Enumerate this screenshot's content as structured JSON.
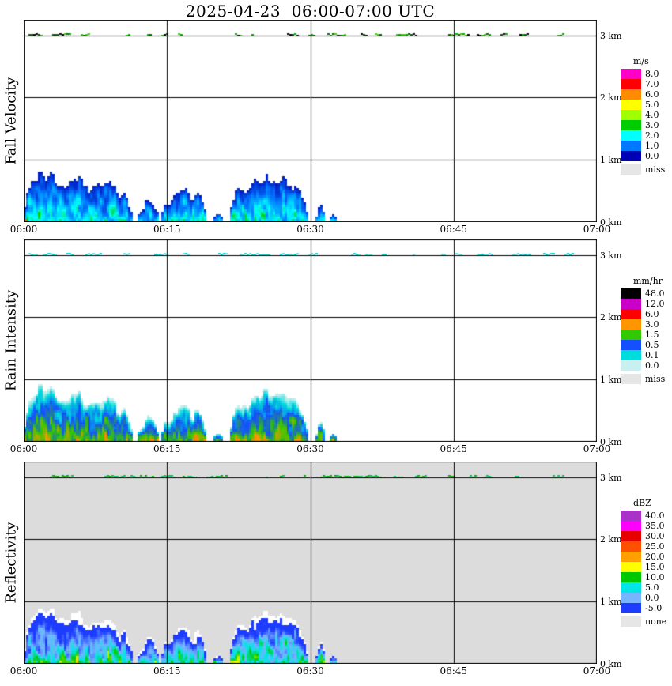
{
  "chart_data": {
    "type": "heatmap",
    "title": "2025-04-23  06:00-07:00 UTC",
    "x_ticks": [
      "06:00",
      "06:15",
      "06:30",
      "06:45",
      "07:00"
    ],
    "x_range_minutes": [
      0,
      60
    ],
    "y_ticks_bottom_to_top": [
      "0 km",
      "1 km",
      "2 km",
      "3 km"
    ],
    "y_range_km": [
      0,
      3.25
    ],
    "grid": {
      "h_lines_km": [
        1,
        2,
        3
      ],
      "v_lines_min": [
        15,
        30,
        45
      ]
    },
    "panels": [
      {
        "label": "Fall Velocity",
        "unit": "m/s",
        "background": "#ffffff",
        "legend": [
          {
            "value": "8.0",
            "color": "#ff00c8"
          },
          {
            "value": "7.0",
            "color": "#ff0000"
          },
          {
            "value": "6.0",
            "color": "#ff8c00"
          },
          {
            "value": "5.0",
            "color": "#ffff00"
          },
          {
            "value": "4.0",
            "color": "#a0ff00"
          },
          {
            "value": "3.0",
            "color": "#00cd00"
          },
          {
            "value": "2.0",
            "color": "#00ffff"
          },
          {
            "value": "1.0",
            "color": "#0078ff"
          },
          {
            "value": "0.0",
            "color": "#0000b4"
          },
          {
            "value": "miss",
            "color": "#e6e6e6"
          }
        ],
        "echo_value_range": [
          0.2,
          3.1
        ],
        "band_colors": [
          "#00b400",
          "#3cd200",
          "#156415",
          "#101010"
        ]
      },
      {
        "label": "Rain Intensity",
        "unit": "mm/hr",
        "background": "#ffffff",
        "legend": [
          {
            "value": "48.0",
            "color": "#000000"
          },
          {
            "value": "12.0",
            "color": "#c800c8"
          },
          {
            "value": "6.0",
            "color": "#ff0000"
          },
          {
            "value": "3.0",
            "color": "#ff9600"
          },
          {
            "value": "1.5",
            "color": "#32c800"
          },
          {
            "value": "0.5",
            "color": "#1450ff"
          },
          {
            "value": "0.1",
            "color": "#00dcdc"
          },
          {
            "value": "0.0",
            "color": "#c8f0f0"
          },
          {
            "value": "miss",
            "color": "#e6e6e6"
          }
        ],
        "echo_value_range": [
          0.0,
          3.4
        ],
        "band_colors": [
          "#00dcdc",
          "#64e6e6"
        ]
      },
      {
        "label": "Reflectivity",
        "unit": "dBZ",
        "background": "#dcdcdc",
        "legend": [
          {
            "value": "40.0",
            "color": "#aa32c8"
          },
          {
            "value": "35.0",
            "color": "#ff00ff"
          },
          {
            "value": "30.0",
            "color": "#e60000"
          },
          {
            "value": "25.0",
            "color": "#ff5000"
          },
          {
            "value": "20.0",
            "color": "#ffa000"
          },
          {
            "value": "15.0",
            "color": "#ffff00"
          },
          {
            "value": "10.0",
            "color": "#00c800"
          },
          {
            "value": "5.0",
            "color": "#00e6e6"
          },
          {
            "value": "0.0",
            "color": "#78b4ff"
          },
          {
            "value": "-5.0",
            "color": "#1e3cff"
          },
          {
            "value": "none",
            "color": "#e6e6e6"
          }
        ],
        "echo_value_range": [
          -9,
          17
        ],
        "fringe_color": "#ffffff",
        "band_colors": [
          "#00c864",
          "#00b400"
        ]
      }
    ],
    "echo_clusters": [
      {
        "t_start": 0.0,
        "t_end": 11.5,
        "max_height_km": 1.3,
        "seed": 11
      },
      {
        "t_start": 11.8,
        "t_end": 14.2,
        "max_height_km": 0.85,
        "seed": 23
      },
      {
        "t_start": 14.4,
        "t_end": 19.2,
        "max_height_km": 1.0,
        "seed": 37
      },
      {
        "t_start": 19.8,
        "t_end": 21.0,
        "max_height_km": 0.4,
        "seed": 41
      },
      {
        "t_start": 21.6,
        "t_end": 29.8,
        "max_height_km": 1.4,
        "seed": 53
      },
      {
        "t_start": 30.6,
        "t_end": 31.6,
        "max_height_km": 0.8,
        "seed": 67
      },
      {
        "t_start": 32.0,
        "t_end": 32.8,
        "max_height_km": 0.55,
        "seed": 71
      }
    ],
    "top_band": {
      "height_km": 3.0,
      "t_start": 0.3,
      "t_end": 57.5
    }
  }
}
